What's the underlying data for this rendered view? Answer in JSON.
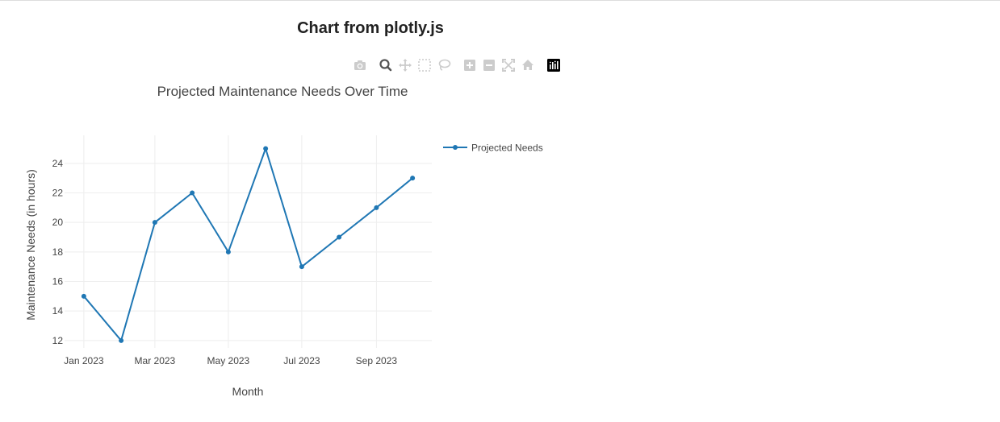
{
  "page": {
    "title": "Chart from plotly.js"
  },
  "modebar": {
    "buttons": [
      {
        "name": "camera-icon",
        "label": "Download plot as a png"
      },
      {
        "name": "zoom-icon",
        "label": "Zoom"
      },
      {
        "name": "pan-icon",
        "label": "Pan"
      },
      {
        "name": "box-select-icon",
        "label": "Box Select"
      },
      {
        "name": "lasso-select-icon",
        "label": "Lasso Select"
      },
      {
        "name": "zoom-in-icon",
        "label": "Zoom in"
      },
      {
        "name": "zoom-out-icon",
        "label": "Zoom out"
      },
      {
        "name": "autoscale-icon",
        "label": "Autoscale"
      },
      {
        "name": "home-icon",
        "label": "Reset axes"
      },
      {
        "name": "plotly-logo-icon",
        "label": "Produced with Plotly"
      }
    ]
  },
  "chart_data": {
    "type": "line",
    "title": "Projected Maintenance Needs Over Time",
    "xlabel": "Month",
    "ylabel": "Maintenance Needs (in hours)",
    "x": [
      "2023-01-01",
      "2023-02-01",
      "2023-03-01",
      "2023-04-01",
      "2023-05-01",
      "2023-06-01",
      "2023-07-01",
      "2023-08-01",
      "2023-09-01",
      "2023-10-01"
    ],
    "x_tick_values": [
      "2023-01-01",
      "2023-03-01",
      "2023-05-01",
      "2023-07-01",
      "2023-09-01"
    ],
    "x_tick_labels": [
      "Jan 2023",
      "Mar 2023",
      "May 2023",
      "Jul 2023",
      "Sep 2023"
    ],
    "y_ticks": [
      12,
      14,
      16,
      18,
      20,
      22,
      24
    ],
    "xlim": [
      "2023-01-01",
      "2023-10-01"
    ],
    "ylim": [
      11.5,
      25.9
    ],
    "grid": true,
    "legend_position": "top-right",
    "series": [
      {
        "name": "Projected Needs",
        "values": [
          15,
          12,
          20,
          22,
          18,
          25,
          17,
          19,
          21,
          23
        ],
        "color": "#1f77b4",
        "mode": "lines+markers"
      }
    ]
  }
}
